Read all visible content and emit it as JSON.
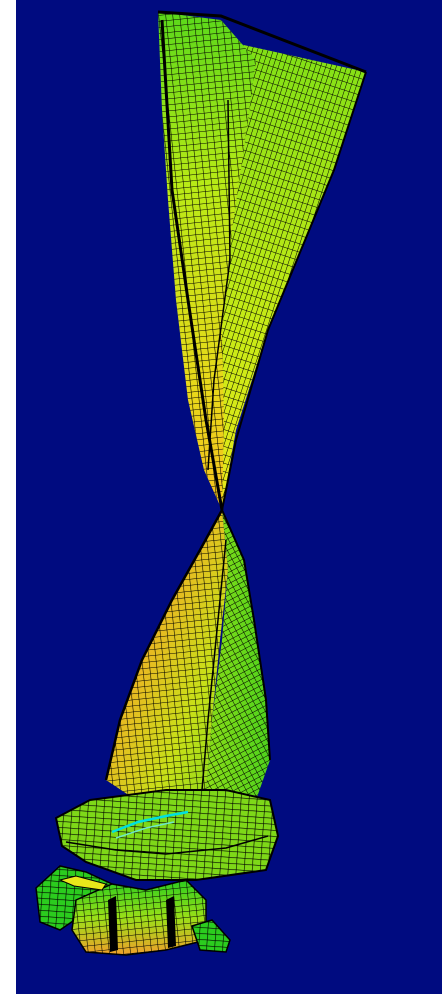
{
  "viewer": {
    "background_color": "#000b80",
    "mesh_line_color": "#000000",
    "highlight_color": "#00e0e0",
    "contour_colors": [
      "#2bcc1e",
      "#6fe016",
      "#b9ea16",
      "#e8e81a",
      "#f5c21e",
      "#f0a02a"
    ],
    "model_description_visible": false
  }
}
